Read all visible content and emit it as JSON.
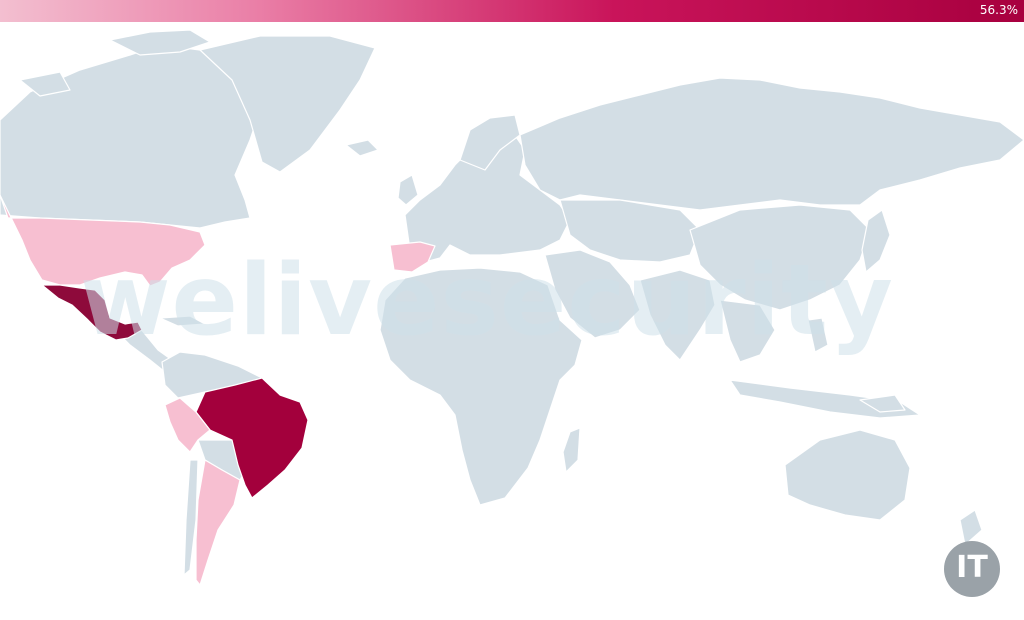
{
  "legend": {
    "max_label": "56.3%"
  },
  "colors": {
    "land": "#d3dee5",
    "border": "#ffffff",
    "low": "#f7bfd1",
    "high": "#a3003c",
    "highest": "#8e0a3b"
  },
  "watermark": {
    "text": "welivesecurity"
  },
  "logo": {
    "text": "IT"
  },
  "highlighted_countries": [
    {
      "name": "Mexico",
      "level": "highest"
    },
    {
      "name": "Brazil",
      "level": "high"
    },
    {
      "name": "United States",
      "level": "low"
    },
    {
      "name": "Spain",
      "level": "low"
    },
    {
      "name": "Peru",
      "level": "low"
    },
    {
      "name": "Argentina",
      "level": "low"
    }
  ]
}
